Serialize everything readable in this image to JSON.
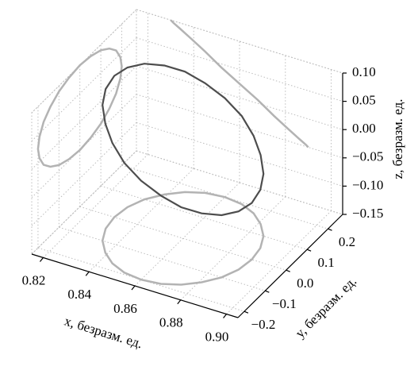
{
  "chart_data": {
    "type": "line3d",
    "xlabel": "x, безразм. ед.",
    "ylabel": "y, безразм. ед.",
    "zlabel": "z, безразм. ед.",
    "xlim": [
      0.815,
      0.905
    ],
    "ylim": [
      -0.23,
      0.27
    ],
    "zlim": [
      -0.15,
      0.1
    ],
    "xticks": [
      0.82,
      0.84,
      0.86,
      0.88,
      {
        "value": 0.9,
        "label": "0.90"
      }
    ],
    "yticks": [
      {
        "value": -0.2,
        "label": "−0.2"
      },
      {
        "value": -0.1,
        "label": "−0.1"
      },
      {
        "value": 0,
        "label": "0.0"
      },
      0.1,
      0.2
    ],
    "zticks": [
      {
        "value": -0.15,
        "label": "−0.15"
      },
      {
        "value": -0.1,
        "label": "−0.10"
      },
      {
        "value": -0.05,
        "label": "−0.05"
      },
      {
        "value": 0,
        "label": "0.00"
      },
      0.05,
      {
        "value": 0.1,
        "label": "0.10"
      }
    ],
    "grid": true,
    "projections": true,
    "projection_color": "#b3b3b3",
    "series": [
      {
        "color": "#4d4d4d",
        "x": [
          0.89,
          0.889,
          0.886,
          0.881,
          0.875,
          0.868,
          0.86,
          0.852,
          0.845,
          0.839,
          0.834,
          0.831,
          0.83,
          0.831,
          0.834,
          0.839,
          0.845,
          0.852,
          0.86,
          0.868,
          0.875,
          0.881,
          0.886,
          0.889
        ],
        "y": [
          0,
          0.052,
          0.1,
          0.141,
          0.173,
          0.193,
          0.2,
          0.193,
          0.173,
          0.141,
          0.1,
          0.052,
          0,
          -0.052,
          -0.1,
          -0.141,
          -0.173,
          -0.193,
          -0.2,
          -0.193,
          -0.173,
          -0.141,
          -0.1,
          -0.052
        ],
        "z": [
          -0.05,
          -0.047,
          -0.04,
          -0.028,
          -0.013,
          0.006,
          0.025,
          0.044,
          0.063,
          0.078,
          0.09,
          0.097,
          0.1,
          0.097,
          0.09,
          0.078,
          0.063,
          0.044,
          0.025,
          0.006,
          -0.013,
          -0.028,
          -0.04,
          -0.047
        ]
      }
    ]
  }
}
